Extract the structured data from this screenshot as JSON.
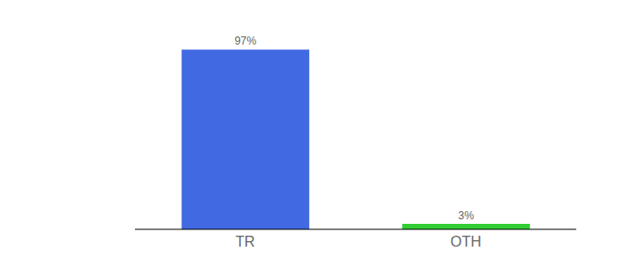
{
  "chart_data": {
    "type": "bar",
    "categories": [
      "TR",
      "OTH"
    ],
    "values": [
      97,
      3
    ],
    "value_labels": [
      "97%",
      "3%"
    ],
    "colors": [
      "#4169e1",
      "#32cd32"
    ],
    "ylim": [
      0,
      108
    ],
    "grid": false,
    "data_labels": true,
    "tick_labels": "x"
  }
}
